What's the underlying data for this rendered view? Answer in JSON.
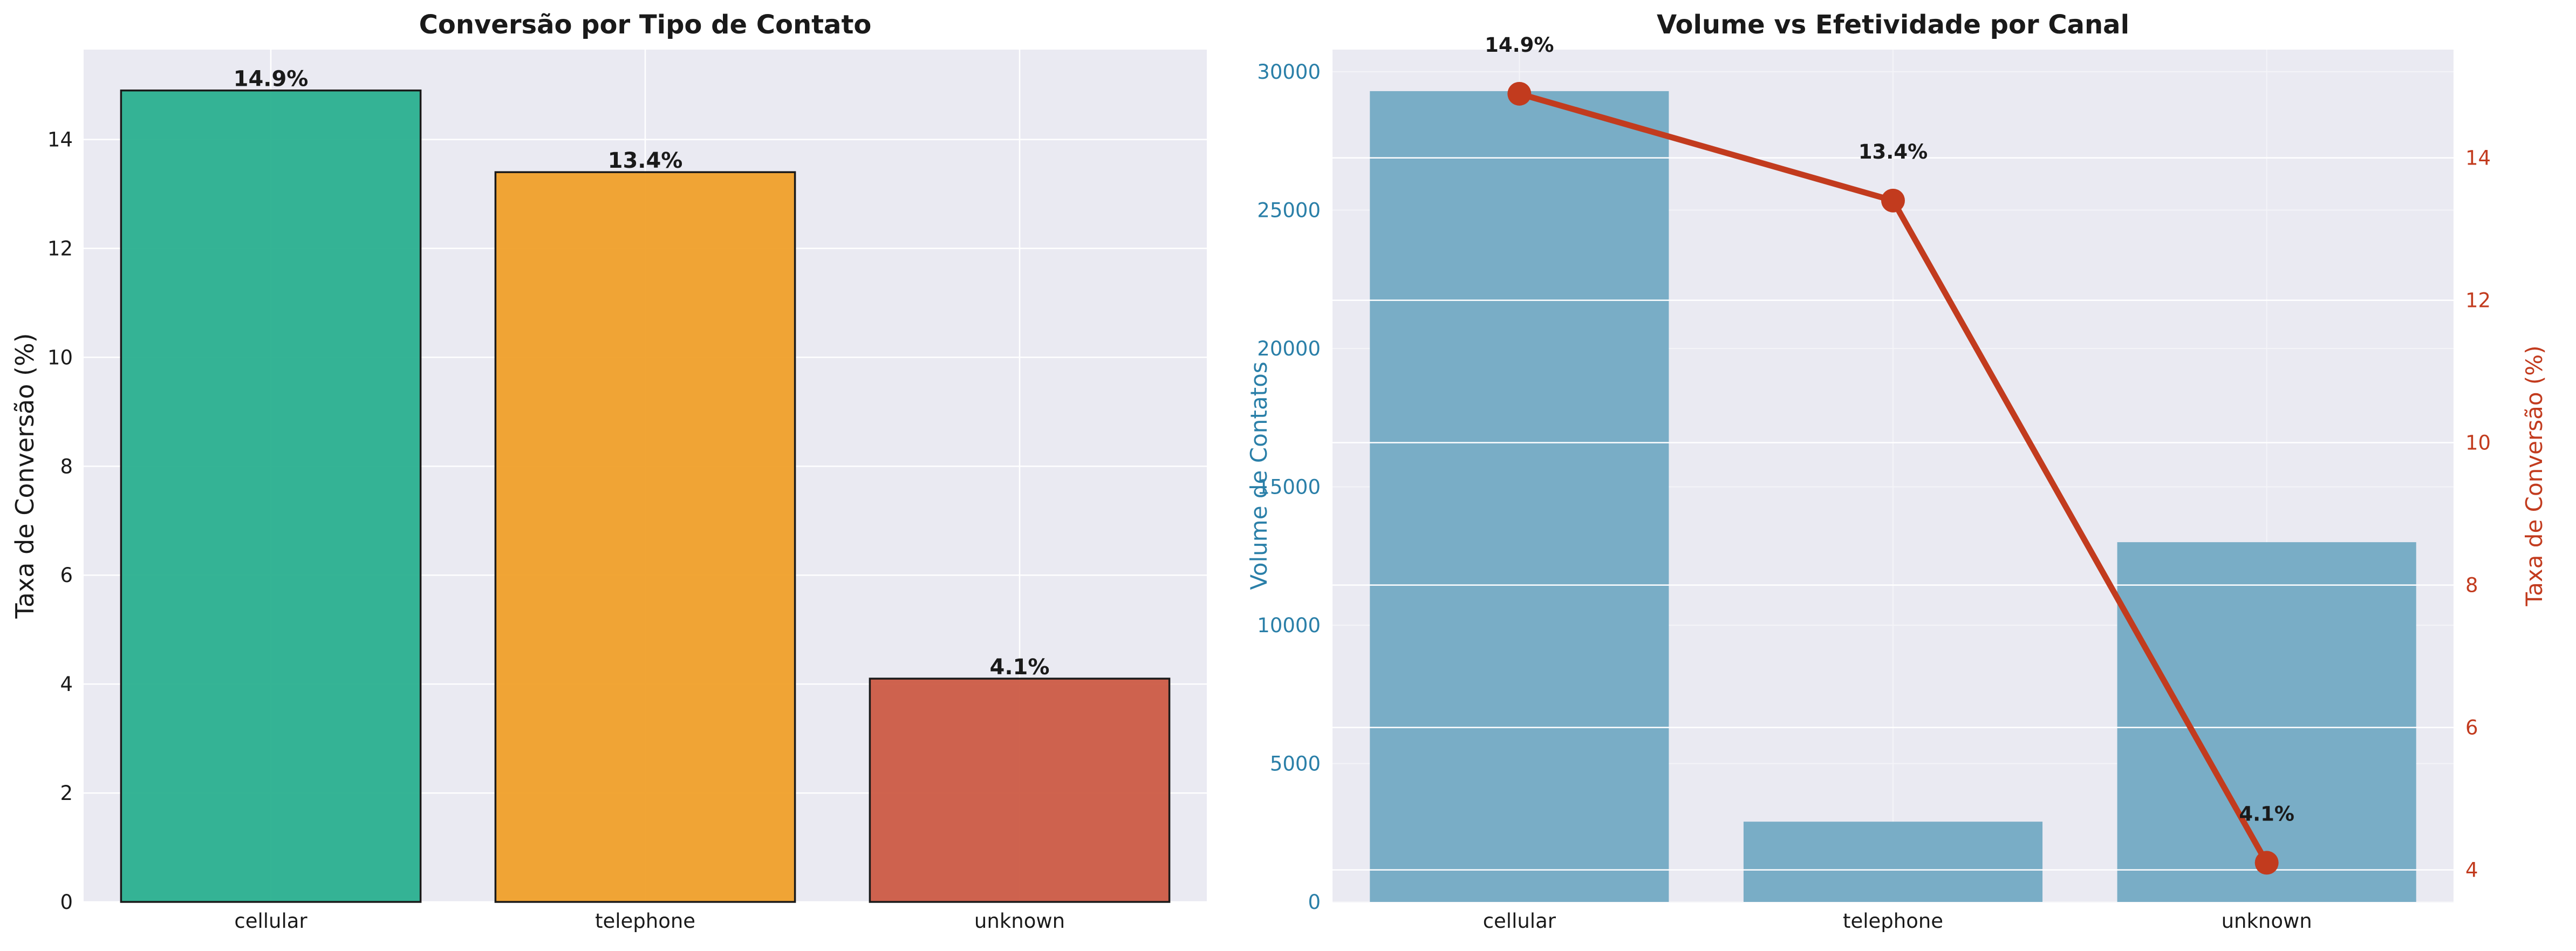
{
  "chart_data": [
    {
      "type": "bar",
      "title": "Conversão por Tipo de Contato",
      "xlabel": "",
      "ylabel": "Taxa de Conversão (%)",
      "categories": [
        "cellular",
        "telephone",
        "unknown"
      ],
      "values": [
        14.9,
        13.4,
        4.1
      ],
      "data_labels": [
        "14.9%",
        "13.4%",
        "4.1%"
      ],
      "colors": [
        "#2ab08f",
        "#f0a02a",
        "#cc5b44"
      ],
      "ylim": [
        0,
        15.65
      ],
      "yticks": [
        0,
        2,
        4,
        6,
        8,
        10,
        12,
        14
      ],
      "grid": true,
      "background": "#eaeaf2"
    },
    {
      "type": "bar+line",
      "title": "Volume vs Efetividade por Canal",
      "xlabel": "",
      "categories": [
        "cellular",
        "telephone",
        "unknown"
      ],
      "bars": {
        "ylabel": "Volume de Contatos",
        "values": [
          29300,
          2900,
          13000
        ],
        "color": "#79adc6",
        "axis_color": "#2a7fa8",
        "ylim": [
          0,
          30800
        ],
        "yticks": [
          0,
          5000,
          10000,
          15000,
          20000,
          25000,
          30000
        ]
      },
      "line": {
        "ylabel": "Taxa de Conversão (%)",
        "values": [
          14.9,
          13.4,
          4.1
        ],
        "data_labels": [
          "14.9%",
          "13.4%",
          "4.1%"
        ],
        "color": "#c23b1e",
        "axis_color": "#c23b1e",
        "ylim": [
          3.55,
          15.52
        ],
        "yticks": [
          4,
          6,
          8,
          10,
          12,
          14
        ]
      },
      "grid": true,
      "background": "#eaeaf2"
    }
  ]
}
